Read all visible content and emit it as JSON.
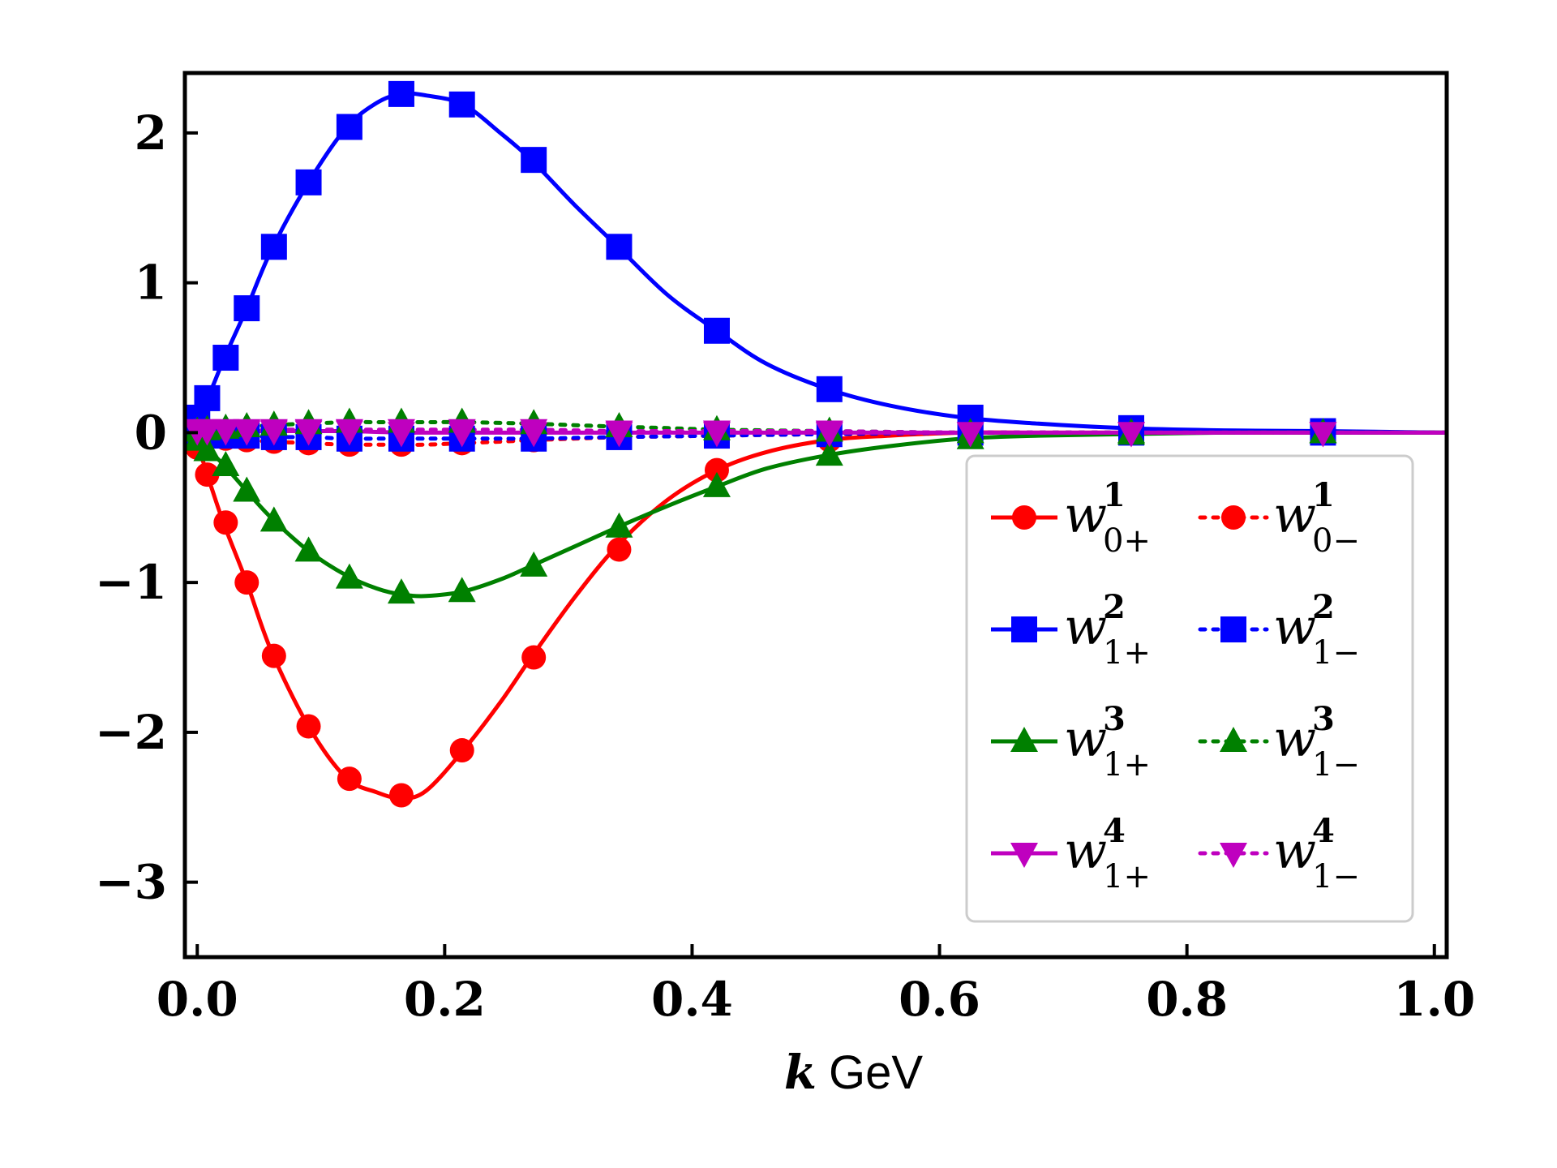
{
  "chart_data": {
    "type": "line",
    "title": "",
    "xlabel_var": "k",
    "xlabel_unit": "GeV",
    "ylabel": "",
    "xlim": [
      -0.01,
      1.01
    ],
    "ylim": [
      -3.5,
      2.4
    ],
    "xticks": [
      0.0,
      0.2,
      0.4,
      0.6,
      0.8,
      1.0
    ],
    "xtick_labels": [
      "0.0",
      "0.2",
      "0.4",
      "0.6",
      "0.8",
      "1.0"
    ],
    "yticks": [
      -3,
      -2,
      -1,
      0,
      1,
      2
    ],
    "ytick_labels": [
      "−3",
      "−2",
      "−1",
      "0",
      "1",
      "2"
    ],
    "legend_position": "lower-right",
    "curve_x": [
      0.0,
      0.005,
      0.012,
      0.022,
      0.04,
      0.06,
      0.09,
      0.12,
      0.145,
      0.165,
      0.185,
      0.215,
      0.245,
      0.27,
      0.305,
      0.34,
      0.38,
      0.42,
      0.46,
      0.51,
      0.56,
      0.62,
      0.68,
      0.75,
      0.83,
      0.91,
      1.01
    ],
    "series": [
      {
        "name": "w_{0+}^1",
        "main": "w",
        "sup": "1",
        "sub": "0+",
        "color": "#ff0000",
        "linestyle": "solid",
        "marker": "circle",
        "x": [
          0.0,
          0.008,
          0.023,
          0.04,
          0.062,
          0.09,
          0.123,
          0.165,
          0.214,
          0.272,
          0.341,
          0.42,
          0.511,
          0.625,
          0.755,
          0.91
        ],
        "values": [
          -0.1,
          -0.28,
          -0.6,
          -1.0,
          -1.49,
          -1.96,
          -2.31,
          -2.42,
          -2.12,
          -1.5,
          -0.78,
          -0.25,
          -0.05,
          0.0,
          0.0,
          0.0
        ],
        "curve": [
          -0.1,
          -0.2,
          -0.38,
          -0.62,
          -1.0,
          -1.46,
          -1.96,
          -2.3,
          -2.4,
          -2.44,
          -2.39,
          -2.12,
          -1.8,
          -1.5,
          -1.1,
          -0.75,
          -0.45,
          -0.25,
          -0.13,
          -0.05,
          -0.02,
          0.0,
          0.0,
          0.0,
          0.0,
          0.0,
          0.0
        ]
      },
      {
        "name": "w_{0-}^1",
        "main": "w",
        "sup": "1",
        "sub": "0−",
        "color": "#ff0000",
        "linestyle": "dotted",
        "marker": "circle",
        "x": [
          0.0,
          0.008,
          0.023,
          0.04,
          0.062,
          0.09,
          0.123,
          0.165,
          0.214,
          0.272,
          0.341,
          0.42,
          0.511,
          0.625,
          0.755,
          0.91
        ],
        "values": [
          -0.02,
          -0.03,
          -0.04,
          -0.05,
          -0.06,
          -0.07,
          -0.08,
          -0.08,
          -0.07,
          -0.05,
          -0.03,
          -0.02,
          -0.01,
          0.0,
          0.0,
          0.0
        ],
        "curve": [
          -0.02,
          -0.025,
          -0.03,
          -0.035,
          -0.05,
          -0.06,
          -0.07,
          -0.08,
          -0.08,
          -0.08,
          -0.08,
          -0.07,
          -0.06,
          -0.05,
          -0.04,
          -0.03,
          -0.025,
          -0.02,
          -0.015,
          -0.01,
          -0.005,
          0.0,
          0.0,
          0.0,
          0.0,
          0.0,
          0.0
        ]
      },
      {
        "name": "w_{1+}^2",
        "main": "w",
        "sup": "2",
        "sub": "1+",
        "color": "#0000ff",
        "linestyle": "solid",
        "marker": "square",
        "x": [
          0.0,
          0.008,
          0.023,
          0.04,
          0.062,
          0.09,
          0.123,
          0.165,
          0.214,
          0.272,
          0.341,
          0.42,
          0.511,
          0.625,
          0.755,
          0.91
        ],
        "values": [
          0.1,
          0.23,
          0.5,
          0.83,
          1.24,
          1.67,
          2.04,
          2.26,
          2.19,
          1.82,
          1.24,
          0.68,
          0.29,
          0.1,
          0.03,
          0.01
        ],
        "curve": [
          0.1,
          0.18,
          0.3,
          0.5,
          0.83,
          1.22,
          1.67,
          2.03,
          2.2,
          2.26,
          2.25,
          2.19,
          2.0,
          1.82,
          1.52,
          1.24,
          0.92,
          0.68,
          0.46,
          0.29,
          0.18,
          0.1,
          0.06,
          0.03,
          0.015,
          0.01,
          0.0
        ]
      },
      {
        "name": "w_{1-}^2",
        "main": "w",
        "sup": "2",
        "sub": "1−",
        "color": "#0000ff",
        "linestyle": "dotted",
        "marker": "square",
        "x": [
          0.0,
          0.008,
          0.023,
          0.04,
          0.062,
          0.09,
          0.123,
          0.165,
          0.214,
          0.272,
          0.341,
          0.42,
          0.511,
          0.625,
          0.755,
          0.91
        ],
        "values": [
          0.0,
          -0.01,
          -0.02,
          -0.02,
          -0.03,
          -0.03,
          -0.04,
          -0.04,
          -0.04,
          -0.04,
          -0.03,
          -0.02,
          -0.01,
          0.0,
          0.0,
          0.0
        ],
        "curve": [
          0.0,
          -0.005,
          -0.01,
          -0.015,
          -0.02,
          -0.03,
          -0.03,
          -0.04,
          -0.04,
          -0.04,
          -0.04,
          -0.04,
          -0.04,
          -0.04,
          -0.035,
          -0.03,
          -0.025,
          -0.02,
          -0.015,
          -0.01,
          -0.005,
          0.0,
          0.0,
          0.0,
          0.0,
          0.0,
          0.0
        ]
      },
      {
        "name": "w_{1+}^3",
        "main": "w",
        "sup": "3",
        "sub": "1+",
        "color": "#008000",
        "linestyle": "solid",
        "marker": "triangle-up",
        "x": [
          0.0,
          0.008,
          0.023,
          0.04,
          0.062,
          0.09,
          0.123,
          0.165,
          0.214,
          0.272,
          0.341,
          0.42,
          0.511,
          0.625,
          0.755,
          0.91
        ],
        "values": [
          -0.05,
          -0.12,
          -0.22,
          -0.39,
          -0.59,
          -0.79,
          -0.97,
          -1.07,
          -1.06,
          -0.89,
          -0.63,
          -0.36,
          -0.15,
          -0.04,
          -0.01,
          0.0
        ],
        "curve": [
          -0.05,
          -0.08,
          -0.14,
          -0.22,
          -0.39,
          -0.57,
          -0.79,
          -0.95,
          -1.04,
          -1.08,
          -1.09,
          -1.06,
          -0.98,
          -0.89,
          -0.76,
          -0.63,
          -0.49,
          -0.36,
          -0.24,
          -0.15,
          -0.09,
          -0.04,
          -0.02,
          -0.01,
          0.0,
          0.0,
          0.0
        ]
      },
      {
        "name": "w_{1-}^3",
        "main": "w",
        "sup": "3",
        "sub": "1−",
        "color": "#008000",
        "linestyle": "dotted",
        "marker": "triangle-up",
        "x": [
          0.0,
          0.008,
          0.023,
          0.04,
          0.062,
          0.09,
          0.123,
          0.165,
          0.214,
          0.272,
          0.341,
          0.42,
          0.511,
          0.625,
          0.755,
          0.91
        ],
        "values": [
          0.01,
          0.02,
          0.03,
          0.04,
          0.05,
          0.06,
          0.07,
          0.07,
          0.07,
          0.06,
          0.04,
          0.02,
          0.01,
          0.0,
          0.0,
          0.0
        ],
        "curve": [
          0.01,
          0.015,
          0.02,
          0.03,
          0.04,
          0.05,
          0.06,
          0.07,
          0.07,
          0.07,
          0.07,
          0.07,
          0.065,
          0.06,
          0.05,
          0.04,
          0.03,
          0.02,
          0.015,
          0.01,
          0.005,
          0.0,
          0.0,
          0.0,
          0.0,
          0.0,
          0.0
        ]
      },
      {
        "name": "w_{1+}^4",
        "main": "w",
        "sup": "4",
        "sub": "1+",
        "color": "#bf00bf",
        "linestyle": "solid",
        "marker": "triangle-down",
        "x": [
          0.0,
          0.008,
          0.023,
          0.04,
          0.062,
          0.09,
          0.123,
          0.165,
          0.214,
          0.272,
          0.341,
          0.42,
          0.511,
          0.625,
          0.755,
          0.91
        ],
        "values": [
          0.01,
          0.01,
          0.01,
          0.01,
          0.01,
          0.01,
          0.01,
          0.0,
          0.0,
          0.0,
          0.0,
          0.0,
          0.0,
          0.0,
          0.0,
          0.0
        ],
        "curve": [
          0.01,
          0.01,
          0.01,
          0.01,
          0.01,
          0.01,
          0.01,
          0.01,
          0.005,
          0.0,
          0.0,
          0.0,
          0.0,
          0.0,
          0.0,
          0.0,
          0.0,
          0.0,
          0.0,
          0.0,
          0.0,
          0.0,
          0.0,
          0.0,
          0.0,
          0.0,
          0.0
        ]
      },
      {
        "name": "w_{1-}^4",
        "main": "w",
        "sup": "4",
        "sub": "1−",
        "color": "#bf00bf",
        "linestyle": "dotted",
        "marker": "triangle-down",
        "x": [
          0.0,
          0.008,
          0.023,
          0.04,
          0.062,
          0.09,
          0.123,
          0.165,
          0.214,
          0.272,
          0.341,
          0.42,
          0.511,
          0.625,
          0.755,
          0.91
        ],
        "values": [
          0.02,
          0.02,
          0.02,
          0.02,
          0.02,
          0.02,
          0.02,
          0.02,
          0.02,
          0.02,
          0.01,
          0.01,
          0.01,
          0.0,
          0.0,
          0.0
        ],
        "curve": [
          0.02,
          0.02,
          0.02,
          0.02,
          0.02,
          0.02,
          0.02,
          0.02,
          0.02,
          0.02,
          0.02,
          0.02,
          0.02,
          0.02,
          0.015,
          0.01,
          0.01,
          0.01,
          0.01,
          0.01,
          0.005,
          0.0,
          0.0,
          0.0,
          0.0,
          0.0,
          0.0
        ]
      }
    ]
  }
}
